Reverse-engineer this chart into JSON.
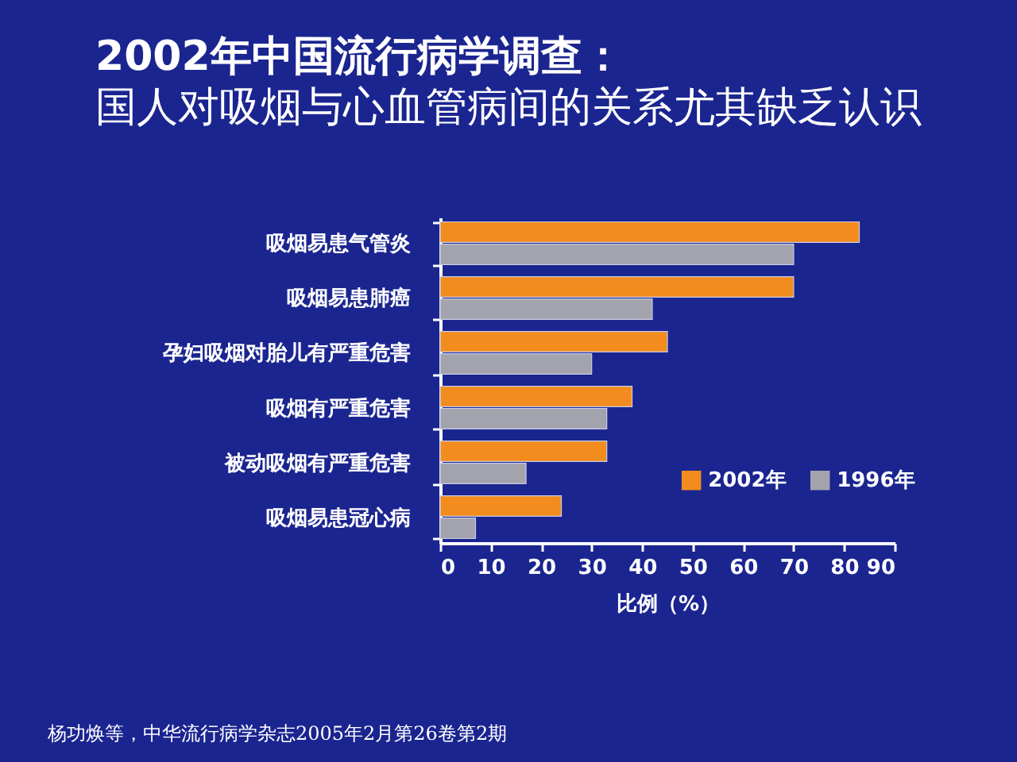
{
  "chart_data": {
    "type": "bar",
    "orientation": "horizontal",
    "title": "2002年中国流行病学调查：",
    "subtitle": "国人对吸烟与心血管病间的关系尤其缺乏认识",
    "xlabel": "比例（%）",
    "categories": [
      "吸烟易患气管炎",
      "吸烟易患肺癌",
      "孕妇吸烟对胎儿有严重危害",
      "吸烟有严重危害",
      "被动吸烟有严重危害",
      "吸烟易患冠心病"
    ],
    "series": [
      {
        "name": "2002年",
        "color": "#f28c1e",
        "values": [
          83,
          70,
          45,
          38,
          33,
          24
        ]
      },
      {
        "name": "1996年",
        "color": "#a3a3ad",
        "values": [
          70,
          42,
          30,
          33,
          17,
          7
        ]
      }
    ],
    "xlim": [
      0,
      90
    ],
    "xticks": [
      0,
      10,
      20,
      30,
      40,
      50,
      60,
      70,
      80,
      90
    ],
    "grid": false,
    "legend": "bottom right",
    "annotations": [
      "杨功焕等，中华流行病学杂志2005年2月第26卷第2期"
    ]
  }
}
